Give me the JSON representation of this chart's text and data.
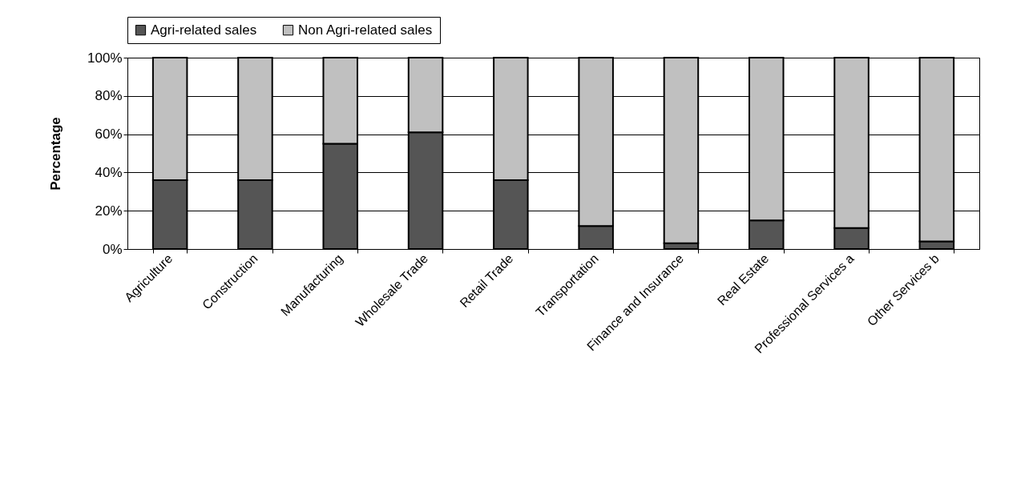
{
  "chart_data": {
    "type": "bar",
    "stacked": true,
    "ylabel": "Percentage",
    "categories": [
      "Agriculture",
      "Construction",
      "Manufacturing",
      "Wholesale Trade",
      "Retail Trade",
      "Transportation",
      "Finance and Insurance",
      "Real Estate",
      "Professional Services a",
      "Other Services b"
    ],
    "series": [
      {
        "name": "Agri-related sales",
        "color": "#555555",
        "values": [
          36,
          36,
          55,
          61,
          36,
          12,
          3,
          15,
          11,
          4
        ]
      },
      {
        "name": "Non Agri-related sales",
        "color": "#c0c0c0",
        "values": [
          64,
          64,
          45,
          39,
          64,
          88,
          97,
          85,
          89,
          96
        ]
      }
    ],
    "ylim": [
      0,
      100
    ],
    "yticks": [
      {
        "value": 0,
        "label": "0%"
      },
      {
        "value": 20,
        "label": "20%"
      },
      {
        "value": 40,
        "label": "40%"
      },
      {
        "value": 60,
        "label": "60%"
      },
      {
        "value": 80,
        "label": "80%"
      },
      {
        "value": 100,
        "label": "100%"
      }
    ],
    "grid": "y",
    "legend": "top"
  }
}
